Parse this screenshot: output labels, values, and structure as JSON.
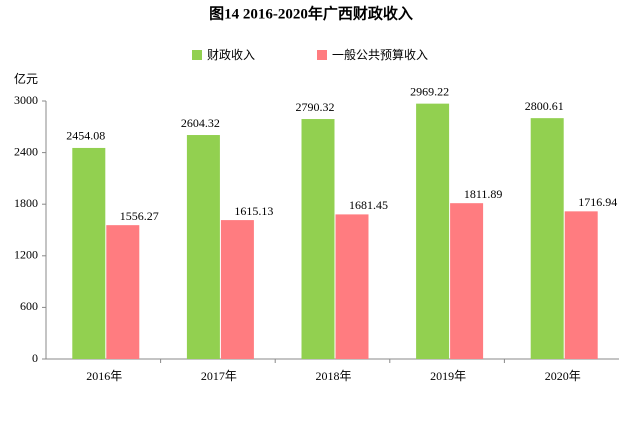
{
  "chart_data": {
    "type": "bar",
    "title": "图14 2016-2020年广西财政收入",
    "y_label": "亿元",
    "categories": [
      "2016年",
      "2017年",
      "2018年",
      "2019年",
      "2020年"
    ],
    "series": [
      {
        "name": "财政收入",
        "color": "#92d050",
        "values": [
          2454.08,
          2604.32,
          2790.32,
          2969.22,
          2800.61
        ]
      },
      {
        "name": "一般公共预算收入",
        "color": "#ff7c80",
        "values": [
          1556.27,
          1615.13,
          1681.45,
          1811.89,
          1716.94
        ]
      }
    ],
    "ylim": [
      0,
      3000
    ],
    "yticks": [
      0,
      600,
      1200,
      1800,
      2400,
      3000
    ],
    "grid": false,
    "legend": "top"
  }
}
